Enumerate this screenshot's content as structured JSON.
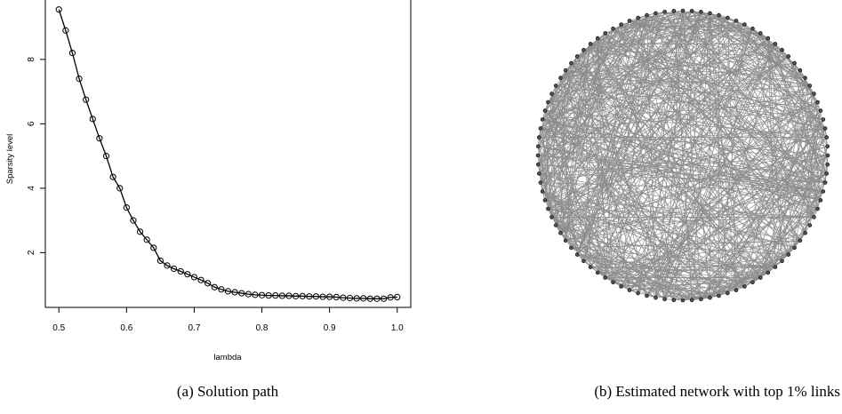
{
  "chart_data": [
    {
      "type": "line",
      "caption": "(a) Solution path",
      "xlabel": "lambda",
      "ylabel": "Sparsity level",
      "xlim": [
        0.48,
        1.02
      ],
      "ylim": [
        0.3,
        9.9
      ],
      "xticks": [
        0.5,
        0.6,
        0.7,
        0.8,
        0.9,
        1.0
      ],
      "xtick_labels": [
        "0.5",
        "0.6",
        "0.7",
        "0.8",
        "0.9",
        "1.0"
      ],
      "yticks": [
        2,
        4,
        6,
        8
      ],
      "ytick_labels": [
        "2",
        "4",
        "6",
        "8"
      ],
      "grid": false,
      "markers": "open-circle",
      "x": [
        0.5,
        0.51,
        0.52,
        0.53,
        0.54,
        0.55,
        0.56,
        0.57,
        0.58,
        0.59,
        0.6,
        0.61,
        0.62,
        0.63,
        0.64,
        0.65,
        0.66,
        0.67,
        0.68,
        0.69,
        0.7,
        0.71,
        0.72,
        0.73,
        0.74,
        0.75,
        0.76,
        0.77,
        0.78,
        0.79,
        0.8,
        0.81,
        0.82,
        0.83,
        0.84,
        0.85,
        0.86,
        0.87,
        0.88,
        0.89,
        0.9,
        0.91,
        0.92,
        0.93,
        0.94,
        0.95,
        0.96,
        0.97,
        0.98,
        0.99,
        1.0
      ],
      "y": [
        9.55,
        8.9,
        8.2,
        7.4,
        6.75,
        6.15,
        5.55,
        5.0,
        4.35,
        4.0,
        3.4,
        3.0,
        2.65,
        2.4,
        2.15,
        1.75,
        1.6,
        1.5,
        1.42,
        1.33,
        1.24,
        1.15,
        1.05,
        0.93,
        0.86,
        0.8,
        0.77,
        0.74,
        0.71,
        0.69,
        0.68,
        0.67,
        0.67,
        0.66,
        0.66,
        0.65,
        0.65,
        0.64,
        0.64,
        0.63,
        0.63,
        0.62,
        0.6,
        0.59,
        0.58,
        0.58,
        0.57,
        0.57,
        0.57,
        0.61,
        0.62
      ]
    },
    {
      "type": "network",
      "caption": "(b) Estimated network with top 1% links",
      "layout": "circle",
      "node_count": 100,
      "edge_color": "#8c8c8c",
      "node_color": "#1a1a1a"
    }
  ]
}
